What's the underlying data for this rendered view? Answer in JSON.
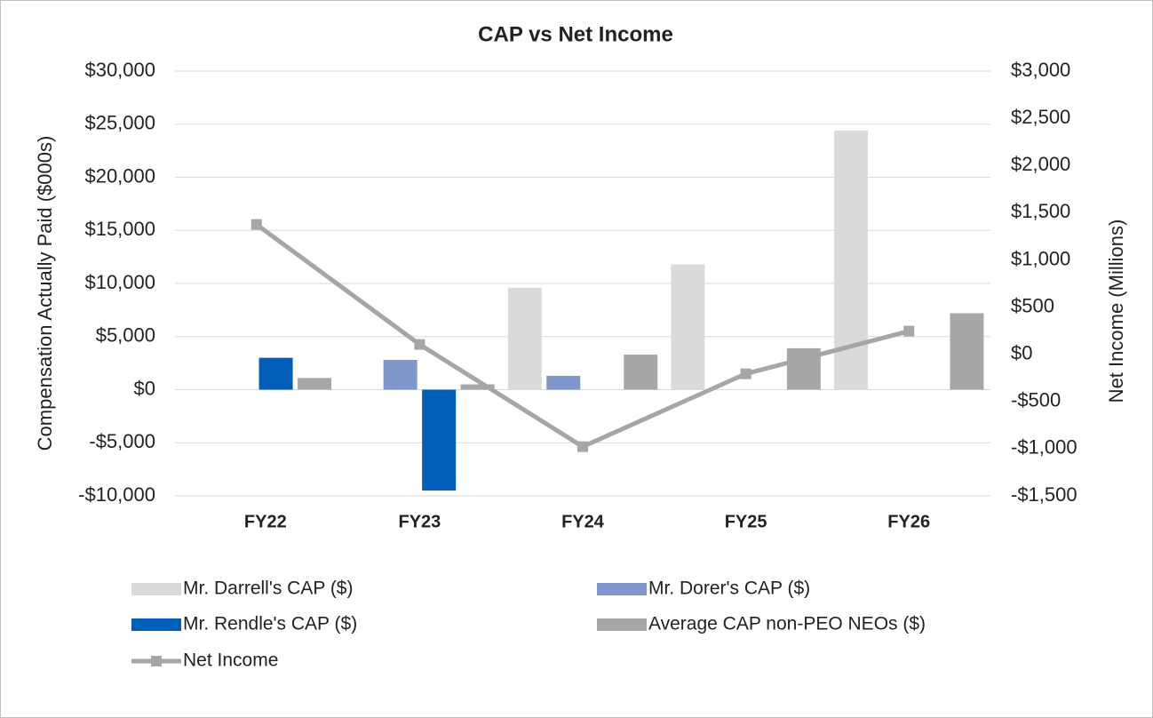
{
  "chart_data": {
    "type": "bar",
    "title": "CAP vs Net Income",
    "y_label": "Compensation Actually Paid ($000s)",
    "y2_label": "Net Income (Millions)",
    "categories": [
      "FY22",
      "FY23",
      "FY24",
      "FY25",
      "FY26"
    ],
    "series": [
      {
        "name": "Mr. Darrell's CAP ($)",
        "color": "#d9dadc",
        "values": [
          null,
          null,
          9600,
          11800,
          24400
        ]
      },
      {
        "name": "Mr. Dorer's CAP ($)",
        "color": "#8097cc",
        "values": [
          null,
          2800,
          1300,
          null,
          null
        ]
      },
      {
        "name": "Mr. Rendle's CAP ($)",
        "color": "#005eb8",
        "values": [
          3000,
          -9500,
          null,
          null,
          null
        ]
      },
      {
        "name": "Average CAP non-PEO NEOs ($)",
        "color": "#a6a7a9",
        "values": [
          1100,
          500,
          3300,
          3900,
          7200
        ]
      },
      {
        "name": "Net Income",
        "color": "#a6a6a6",
        "type": "line",
        "axis": "y2",
        "values": [
          1375,
          104,
          -979,
          -207,
          245
        ]
      }
    ],
    "ylim": [
      -10000,
      30000
    ],
    "yticks": [
      {
        "value": -10000,
        "label": "-$10,000"
      },
      {
        "value": -5000,
        "label": "-$5,000"
      },
      {
        "value": 0,
        "label": "$0"
      },
      {
        "value": 5000,
        "label": "$5,000"
      },
      {
        "value": 10000,
        "label": "$10,000"
      },
      {
        "value": 15000,
        "label": "$15,000"
      },
      {
        "value": 20000,
        "label": "$20,000"
      },
      {
        "value": 25000,
        "label": "$25,000"
      },
      {
        "value": 30000,
        "label": "$30,000"
      }
    ],
    "y2lim": [
      -1500,
      3000
    ],
    "y2ticks": [
      {
        "value": -1500,
        "label": "-$1,500"
      },
      {
        "value": -1000,
        "label": "-$1,000"
      },
      {
        "value": -500,
        "label": "-$500"
      },
      {
        "value": 0,
        "label": "$0"
      },
      {
        "value": 500,
        "label": "$500"
      },
      {
        "value": 1000,
        "label": "$1,000"
      },
      {
        "value": 1500,
        "label": "$1,500"
      },
      {
        "value": 2000,
        "label": "$2,000"
      },
      {
        "value": 2500,
        "label": "$2,500"
      },
      {
        "value": 3000,
        "label": "$3,000"
      }
    ],
    "grid": true
  }
}
